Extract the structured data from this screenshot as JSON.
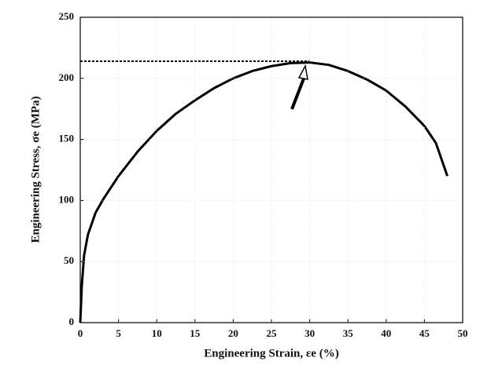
{
  "chart_data": {
    "type": "line",
    "x_label": "Engineering Strain,  εe (%)",
    "y_label": "Engineering Stress,  σe  (MPa)",
    "x": [
      0,
      0.2,
      0.5,
      1,
      2,
      3,
      5,
      7.5,
      10,
      12.5,
      15,
      17.5,
      20,
      22.5,
      25,
      27.5,
      30,
      32.5,
      35,
      37.5,
      40,
      42.5,
      45,
      46.5,
      48
    ],
    "series": [
      {
        "name": "Engineering stress",
        "color": "#000000",
        "values": [
          0,
          30,
          55,
          72,
          90,
          101,
          120,
          140,
          157,
          171,
          182,
          192,
          200,
          206,
          210,
          212.5,
          213,
          211,
          206,
          199,
          190,
          177,
          161,
          147,
          120
        ]
      }
    ],
    "reference_lines": [
      {
        "y": 214,
        "x": [
          0,
          30
        ]
      }
    ],
    "xlim": [
      0,
      50
    ],
    "xticks": [
      0,
      5,
      10,
      15,
      20,
      25,
      30,
      35,
      40,
      45,
      50
    ],
    "ylim": [
      0,
      250
    ],
    "yticks": [
      0,
      50,
      100,
      150,
      200,
      250
    ],
    "grid": true
  }
}
